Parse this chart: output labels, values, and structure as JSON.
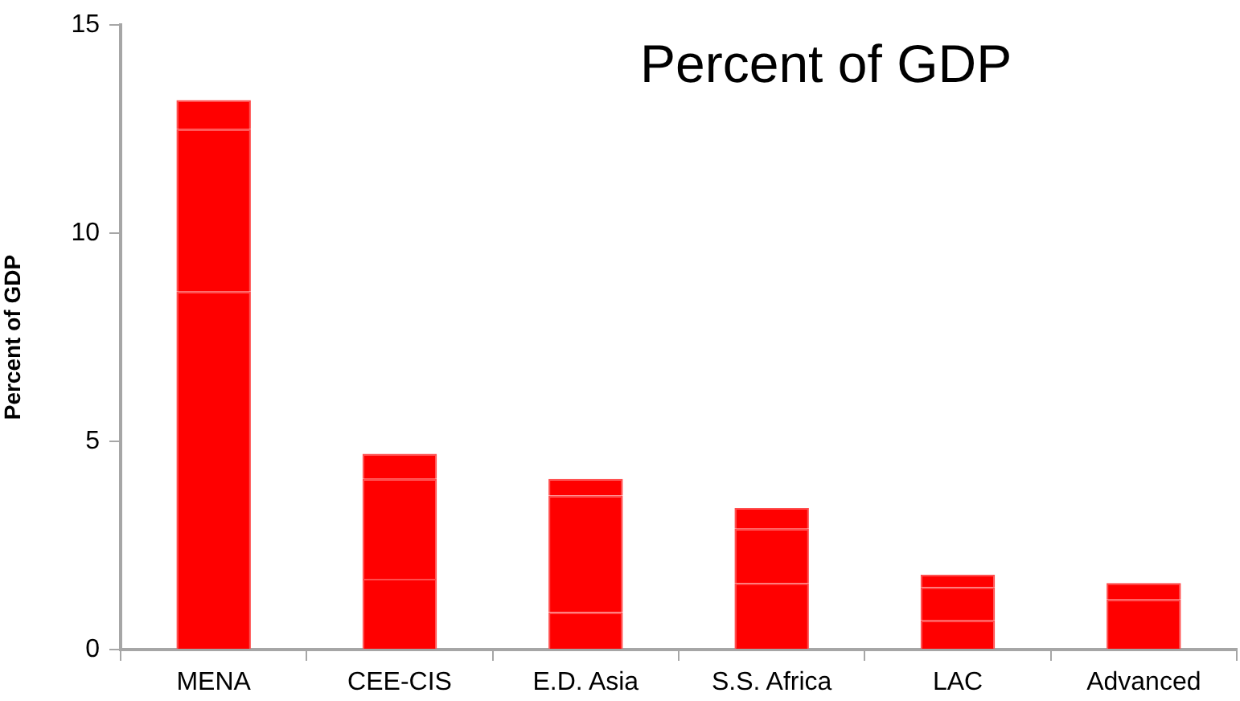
{
  "chart_data": {
    "type": "bar",
    "title": "Percent of GDP",
    "ylabel": "Percent of GDP",
    "categories": [
      "MENA",
      "CEE-CIS",
      "E.D. Asia",
      "S.S. Africa",
      "LAC",
      "Advanced"
    ],
    "series": [
      {
        "color": "#ff0000",
        "values": [
          8.6,
          1.7,
          0.9,
          1.6,
          0.7,
          1.2
        ]
      },
      {
        "color": "#ff0000",
        "values": [
          3.9,
          2.4,
          2.8,
          1.3,
          0.8,
          0.4
        ]
      },
      {
        "color": "#ff0000",
        "values": [
          0.7,
          0.6,
          0.4,
          0.5,
          0.3,
          null
        ]
      }
    ],
    "stacked": true,
    "ylim": [
      0,
      15
    ],
    "yticks": [
      0,
      5,
      10,
      15
    ]
  }
}
